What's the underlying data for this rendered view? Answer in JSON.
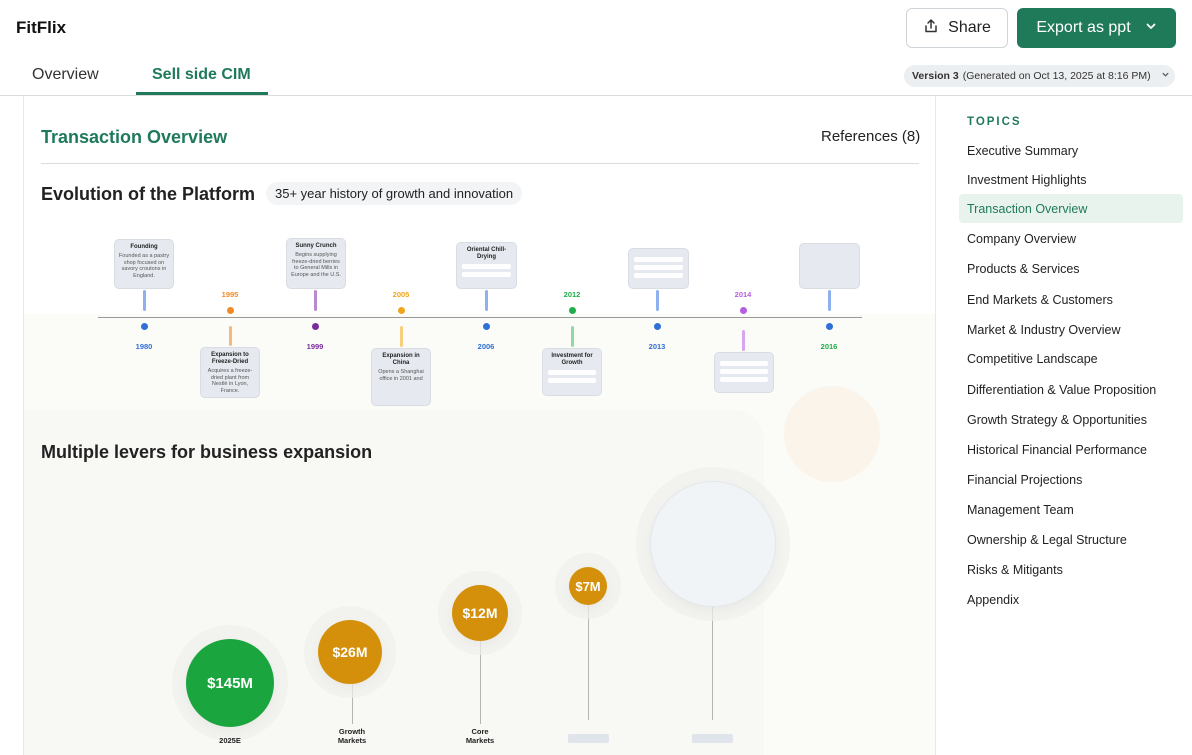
{
  "app": {
    "title": "FitFlix"
  },
  "header": {
    "share_label": "Share",
    "export_label": "Export as ppt",
    "tabs": [
      {
        "label": "Overview"
      },
      {
        "label": "Sell side CIM"
      }
    ],
    "version": {
      "name": "Version 3",
      "detail": "(Generated on Oct 13, 2025 at 8:16 PM)"
    }
  },
  "doc": {
    "section_title": "Transaction Overview",
    "references": "References (8)",
    "evolution": {
      "title": "Evolution of the Platform",
      "chip": "35+ year history of growth and innovation",
      "events": [
        {
          "year": "1980",
          "title": "Founding",
          "desc": "Founded as a pastry shop focused on savory croutons in England."
        },
        {
          "year": "1995",
          "title": "Expansion to Freeze-Dried",
          "desc": "Acquires a freeze-dried plant from Nestlé in Lyon, France."
        },
        {
          "year": "1999",
          "title": "Sunny Crunch",
          "desc": "Begins supplying freeze-dried berries to General Mills in Europe and the U.S."
        },
        {
          "year": "2005",
          "title": "Expansion in China",
          "desc": "Opens a Shanghai office in 2001 and"
        },
        {
          "year": "2006",
          "title": "Oriental Chill-Drying",
          "desc": ""
        },
        {
          "year": "2012",
          "title": "Investment for Growth",
          "desc": ""
        },
        {
          "year": "2013",
          "title": "",
          "desc": ""
        },
        {
          "year": "2014",
          "title": "",
          "desc": ""
        },
        {
          "year": "2016",
          "title": "",
          "desc": ""
        }
      ],
      "colors": {
        "blue": "#2f6fd6",
        "orange": "#f08a24",
        "purple": "#7b2c9c",
        "amber": "#f0a51c",
        "green": "#1fae4a",
        "violet": "#b65de0"
      }
    },
    "levers": {
      "title": "Multiple levers for business expansion",
      "bubbles": [
        {
          "value": "$145M",
          "label": "2025E"
        },
        {
          "value": "$26M",
          "label": "Growth Markets"
        },
        {
          "value": "$12M",
          "label": "Core Markets"
        },
        {
          "value": "$7M",
          "label": ""
        },
        {
          "value": "",
          "label": ""
        }
      ],
      "colors": {
        "green": "#1aa53f",
        "gold": "#d4900a"
      }
    }
  },
  "sidebar": {
    "label": "TOPICS",
    "items": [
      {
        "label": "Executive Summary"
      },
      {
        "label": "Investment Highlights"
      },
      {
        "label": "Transaction Overview",
        "active": true
      },
      {
        "label": "Company Overview"
      },
      {
        "label": "Products & Services"
      },
      {
        "label": "End Markets & Customers"
      },
      {
        "label": "Market & Industry Overview"
      },
      {
        "label": "Competitive Landscape"
      },
      {
        "label": "Differentiation & Value Proposition"
      },
      {
        "label": "Growth Strategy & Opportunities"
      },
      {
        "label": "Historical Financial Performance"
      },
      {
        "label": "Financial Projections"
      },
      {
        "label": "Management Team"
      },
      {
        "label": "Ownership & Legal Structure"
      },
      {
        "label": "Risks & Mitigants"
      },
      {
        "label": "Appendix"
      }
    ],
    "accent": "#1f7a5a"
  }
}
